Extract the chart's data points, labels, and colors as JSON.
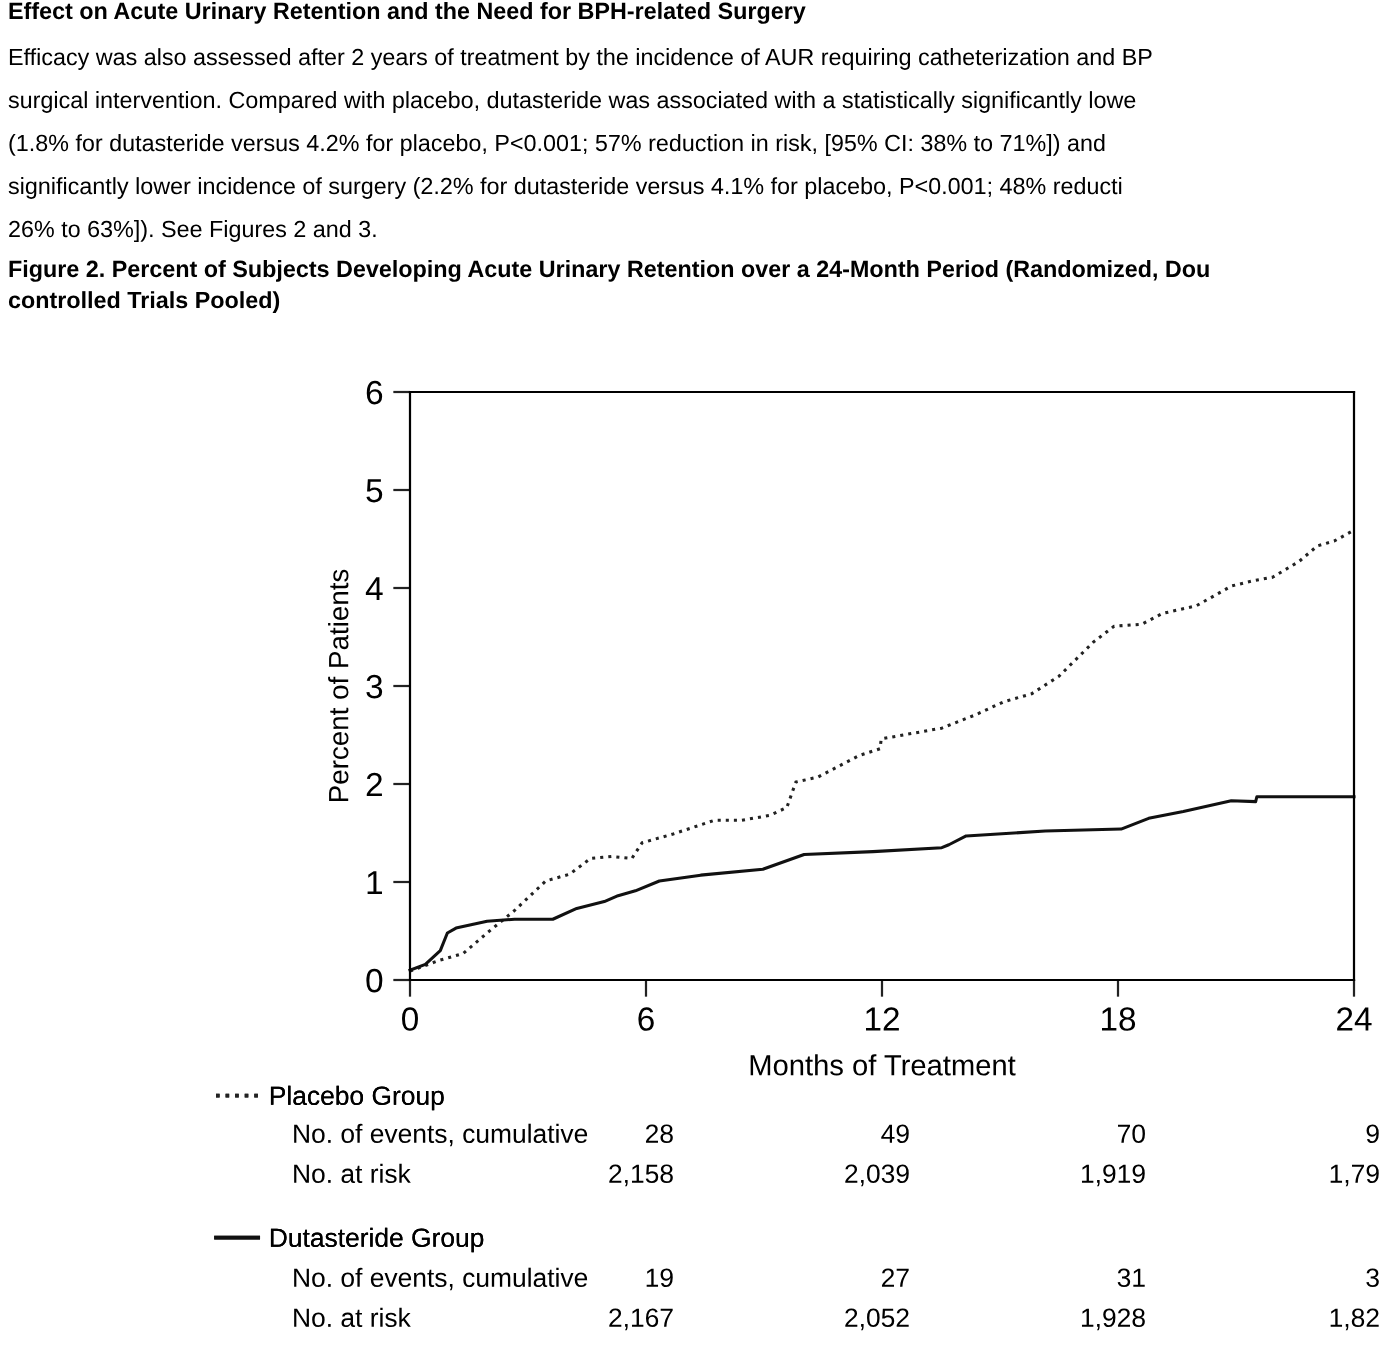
{
  "chart_data": {
    "type": "line",
    "title": "Figure 2. Percent of Subjects Developing Acute Urinary Retention over a 24-Month Period (Randomized, Dou\ncontrolled Trials Pooled)",
    "xlabel": "Months of Treatment",
    "ylabel": "Percent of Patients",
    "xlim": [
      0,
      24
    ],
    "ylim": [
      0,
      6
    ],
    "xticks": [
      0,
      6,
      12,
      18,
      24
    ],
    "yticks": [
      0,
      1,
      2,
      3,
      4,
      5,
      6
    ],
    "grid": false,
    "legend": "bottom left",
    "marker": "none",
    "series": [
      {
        "name": "Placebo Group",
        "color": "#222222",
        "line_style": "dotted",
        "x": [
          0,
          0.74,
          1.35,
          1.96,
          2.66,
          3.45,
          4.06,
          4.59,
          5.12,
          5.64,
          5.9,
          6.69,
          7.74,
          8.44,
          9.15,
          9.58,
          9.81,
          10.37,
          11.42,
          11.95,
          11.98,
          13.52,
          14.4,
          15.1,
          15.8,
          16.5,
          17.38,
          17.9,
          18.6,
          19.13,
          20.0,
          20.88,
          21.4,
          21.93,
          22.6,
          23.07,
          23.5,
          24
        ],
        "values": [
          0.09,
          0.2,
          0.27,
          0.48,
          0.71,
          1.01,
          1.08,
          1.24,
          1.26,
          1.24,
          1.4,
          1.49,
          1.63,
          1.63,
          1.68,
          1.76,
          2.02,
          2.07,
          2.29,
          2.36,
          2.46,
          2.57,
          2.71,
          2.84,
          2.92,
          3.1,
          3.45,
          3.61,
          3.63,
          3.74,
          3.82,
          4.02,
          4.07,
          4.11,
          4.27,
          4.43,
          4.48,
          4.59
        ]
      },
      {
        "name": "Dutasteride Group",
        "color": "#111111",
        "line_style": "solid",
        "x": [
          0,
          0.39,
          0.77,
          0.95,
          1.17,
          1.96,
          2.66,
          3.63,
          4.24,
          4.94,
          5.29,
          5.73,
          6.34,
          7.39,
          8.97,
          10.02,
          11.77,
          13.52,
          13.7,
          14.14,
          16.15,
          18.08,
          18.78,
          19.66,
          20.88,
          21.5,
          21.53,
          24
        ],
        "values": [
          0.1,
          0.16,
          0.3,
          0.48,
          0.53,
          0.6,
          0.62,
          0.62,
          0.73,
          0.8,
          0.86,
          0.91,
          1.01,
          1.07,
          1.13,
          1.28,
          1.31,
          1.35,
          1.38,
          1.47,
          1.52,
          1.54,
          1.65,
          1.72,
          1.83,
          1.82,
          1.87,
          1.87
        ]
      }
    ],
    "annotations": [
      "Effect on Acute Urinary Retention and the Need for BPH-related Surgery",
      "Efficacy was also assessed after 2 years of treatment by the incidence of AUR requiring catheterization and BP",
      "surgical intervention. Compared with placebo, dutasteride was associated with a statistically significantly lowe",
      "(1.8% for dutasteride versus 4.2% for placebo, P<0.001; 57% reduction in risk, [95% CI: 38% to 71%]) and",
      "significantly lower incidence of surgery (2.2% for dutasteride versus 4.1% for placebo, P<0.001; 48% reducti",
      "26% to 63%]). See Figures 2 and 3.",
      "No. of events, cumulative",
      "28",
      "49",
      "70",
      "9",
      "No. at risk",
      "2,158",
      "2,039",
      "1,919",
      "1,79",
      "No. of events, cumulative",
      "19",
      "27",
      "31",
      "3",
      "No. at risk",
      "2,167",
      "2,052",
      "1,928",
      "1,82"
    ]
  }
}
